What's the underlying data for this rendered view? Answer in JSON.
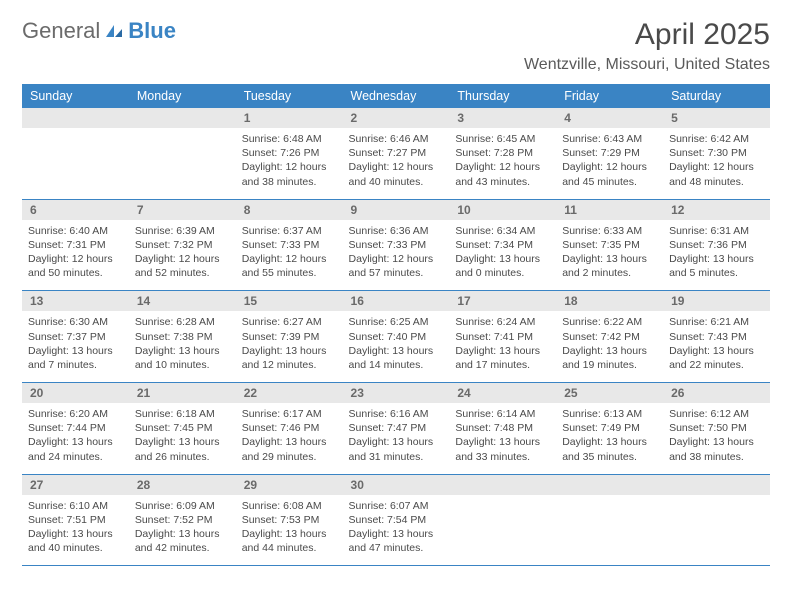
{
  "logo": {
    "text_gen": "General",
    "text_blue": "Blue"
  },
  "header": {
    "month_title": "April 2025",
    "location": "Wentzville, Missouri, United States"
  },
  "theme": {
    "accent": "#3a84c4",
    "header_text": "#ffffff",
    "daynum_bg": "#e8e8e8",
    "body_text": "#4a4a4a"
  },
  "weekdays": [
    "Sunday",
    "Monday",
    "Tuesday",
    "Wednesday",
    "Thursday",
    "Friday",
    "Saturday"
  ],
  "weeks": [
    [
      null,
      null,
      {
        "n": "1",
        "sr": "Sunrise: 6:48 AM",
        "ss": "Sunset: 7:26 PM",
        "dl": "Daylight: 12 hours and 38 minutes."
      },
      {
        "n": "2",
        "sr": "Sunrise: 6:46 AM",
        "ss": "Sunset: 7:27 PM",
        "dl": "Daylight: 12 hours and 40 minutes."
      },
      {
        "n": "3",
        "sr": "Sunrise: 6:45 AM",
        "ss": "Sunset: 7:28 PM",
        "dl": "Daylight: 12 hours and 43 minutes."
      },
      {
        "n": "4",
        "sr": "Sunrise: 6:43 AM",
        "ss": "Sunset: 7:29 PM",
        "dl": "Daylight: 12 hours and 45 minutes."
      },
      {
        "n": "5",
        "sr": "Sunrise: 6:42 AM",
        "ss": "Sunset: 7:30 PM",
        "dl": "Daylight: 12 hours and 48 minutes."
      }
    ],
    [
      {
        "n": "6",
        "sr": "Sunrise: 6:40 AM",
        "ss": "Sunset: 7:31 PM",
        "dl": "Daylight: 12 hours and 50 minutes."
      },
      {
        "n": "7",
        "sr": "Sunrise: 6:39 AM",
        "ss": "Sunset: 7:32 PM",
        "dl": "Daylight: 12 hours and 52 minutes."
      },
      {
        "n": "8",
        "sr": "Sunrise: 6:37 AM",
        "ss": "Sunset: 7:33 PM",
        "dl": "Daylight: 12 hours and 55 minutes."
      },
      {
        "n": "9",
        "sr": "Sunrise: 6:36 AM",
        "ss": "Sunset: 7:33 PM",
        "dl": "Daylight: 12 hours and 57 minutes."
      },
      {
        "n": "10",
        "sr": "Sunrise: 6:34 AM",
        "ss": "Sunset: 7:34 PM",
        "dl": "Daylight: 13 hours and 0 minutes."
      },
      {
        "n": "11",
        "sr": "Sunrise: 6:33 AM",
        "ss": "Sunset: 7:35 PM",
        "dl": "Daylight: 13 hours and 2 minutes."
      },
      {
        "n": "12",
        "sr": "Sunrise: 6:31 AM",
        "ss": "Sunset: 7:36 PM",
        "dl": "Daylight: 13 hours and 5 minutes."
      }
    ],
    [
      {
        "n": "13",
        "sr": "Sunrise: 6:30 AM",
        "ss": "Sunset: 7:37 PM",
        "dl": "Daylight: 13 hours and 7 minutes."
      },
      {
        "n": "14",
        "sr": "Sunrise: 6:28 AM",
        "ss": "Sunset: 7:38 PM",
        "dl": "Daylight: 13 hours and 10 minutes."
      },
      {
        "n": "15",
        "sr": "Sunrise: 6:27 AM",
        "ss": "Sunset: 7:39 PM",
        "dl": "Daylight: 13 hours and 12 minutes."
      },
      {
        "n": "16",
        "sr": "Sunrise: 6:25 AM",
        "ss": "Sunset: 7:40 PM",
        "dl": "Daylight: 13 hours and 14 minutes."
      },
      {
        "n": "17",
        "sr": "Sunrise: 6:24 AM",
        "ss": "Sunset: 7:41 PM",
        "dl": "Daylight: 13 hours and 17 minutes."
      },
      {
        "n": "18",
        "sr": "Sunrise: 6:22 AM",
        "ss": "Sunset: 7:42 PM",
        "dl": "Daylight: 13 hours and 19 minutes."
      },
      {
        "n": "19",
        "sr": "Sunrise: 6:21 AM",
        "ss": "Sunset: 7:43 PM",
        "dl": "Daylight: 13 hours and 22 minutes."
      }
    ],
    [
      {
        "n": "20",
        "sr": "Sunrise: 6:20 AM",
        "ss": "Sunset: 7:44 PM",
        "dl": "Daylight: 13 hours and 24 minutes."
      },
      {
        "n": "21",
        "sr": "Sunrise: 6:18 AM",
        "ss": "Sunset: 7:45 PM",
        "dl": "Daylight: 13 hours and 26 minutes."
      },
      {
        "n": "22",
        "sr": "Sunrise: 6:17 AM",
        "ss": "Sunset: 7:46 PM",
        "dl": "Daylight: 13 hours and 29 minutes."
      },
      {
        "n": "23",
        "sr": "Sunrise: 6:16 AM",
        "ss": "Sunset: 7:47 PM",
        "dl": "Daylight: 13 hours and 31 minutes."
      },
      {
        "n": "24",
        "sr": "Sunrise: 6:14 AM",
        "ss": "Sunset: 7:48 PM",
        "dl": "Daylight: 13 hours and 33 minutes."
      },
      {
        "n": "25",
        "sr": "Sunrise: 6:13 AM",
        "ss": "Sunset: 7:49 PM",
        "dl": "Daylight: 13 hours and 35 minutes."
      },
      {
        "n": "26",
        "sr": "Sunrise: 6:12 AM",
        "ss": "Sunset: 7:50 PM",
        "dl": "Daylight: 13 hours and 38 minutes."
      }
    ],
    [
      {
        "n": "27",
        "sr": "Sunrise: 6:10 AM",
        "ss": "Sunset: 7:51 PM",
        "dl": "Daylight: 13 hours and 40 minutes."
      },
      {
        "n": "28",
        "sr": "Sunrise: 6:09 AM",
        "ss": "Sunset: 7:52 PM",
        "dl": "Daylight: 13 hours and 42 minutes."
      },
      {
        "n": "29",
        "sr": "Sunrise: 6:08 AM",
        "ss": "Sunset: 7:53 PM",
        "dl": "Daylight: 13 hours and 44 minutes."
      },
      {
        "n": "30",
        "sr": "Sunrise: 6:07 AM",
        "ss": "Sunset: 7:54 PM",
        "dl": "Daylight: 13 hours and 47 minutes."
      },
      null,
      null,
      null
    ]
  ]
}
